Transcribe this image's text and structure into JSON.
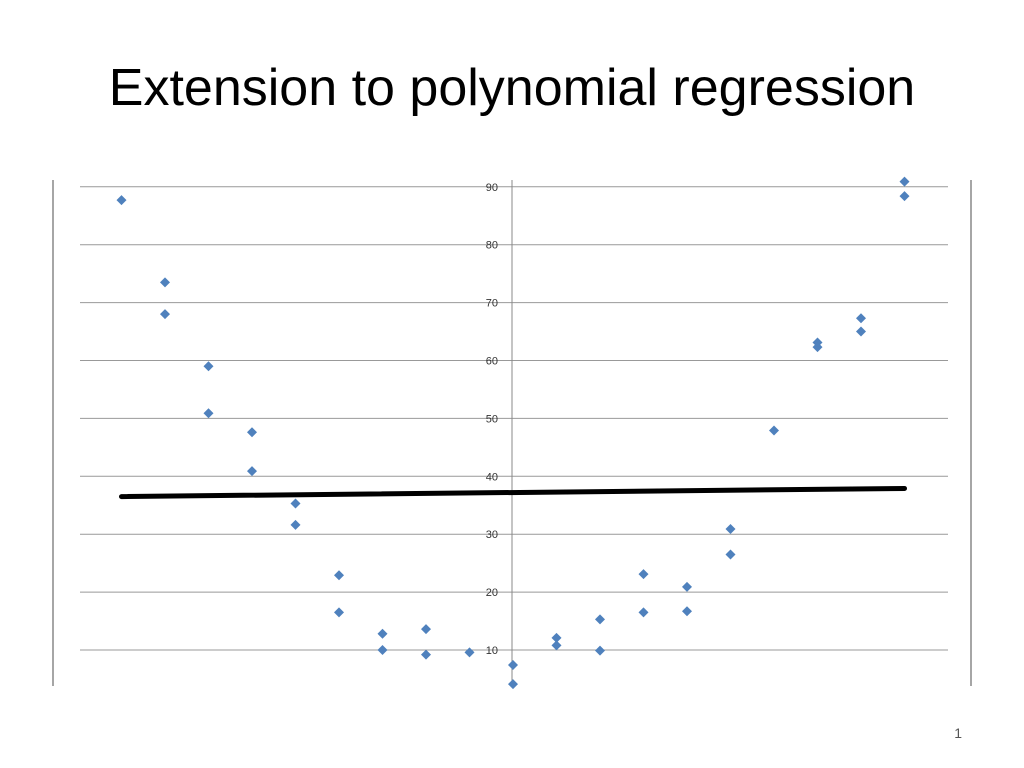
{
  "slide": {
    "title": "Extension to polynomial regression",
    "number": "1"
  },
  "chart_data": {
    "type": "scatter",
    "title": "",
    "xlabel": "",
    "ylabel": "",
    "ylim": [
      4,
      92
    ],
    "yticks": [
      10,
      20,
      30,
      40,
      50,
      60,
      70,
      80,
      90
    ],
    "grid": true,
    "legend": "none",
    "colors": {
      "points": "#4f81bd",
      "grid": "#999999",
      "fit_line": "#000000"
    },
    "series": [
      {
        "points": [
          [
            1,
            87.7
          ],
          [
            2,
            73.5
          ],
          [
            2,
            68
          ],
          [
            3,
            59
          ],
          [
            3,
            50.9
          ],
          [
            4,
            47.6
          ],
          [
            4,
            40.9
          ],
          [
            5,
            35.3
          ],
          [
            5,
            31.6
          ],
          [
            6,
            22.9
          ],
          [
            6,
            16.5
          ],
          [
            7,
            12.8
          ],
          [
            7,
            10
          ],
          [
            8,
            13.6
          ],
          [
            8,
            9.2
          ],
          [
            9,
            9.6
          ],
          [
            10,
            7.4
          ],
          [
            10,
            4.1
          ],
          [
            11,
            12.1
          ],
          [
            11,
            10.8
          ],
          [
            12,
            15.3
          ],
          [
            12,
            9.9
          ],
          [
            13,
            23.1
          ],
          [
            13,
            16.5
          ],
          [
            14,
            20.9
          ],
          [
            14,
            16.7
          ],
          [
            15,
            30.9
          ],
          [
            15,
            26.5
          ],
          [
            16,
            47.9
          ],
          [
            17,
            63.1
          ],
          [
            17,
            62.3
          ],
          [
            18,
            67.3
          ],
          [
            18,
            65
          ],
          [
            19,
            90.9
          ],
          [
            19,
            88.4
          ]
        ]
      }
    ],
    "fit_line": {
      "x": [
        1,
        19
      ],
      "y": [
        36.5,
        37.9
      ]
    }
  }
}
